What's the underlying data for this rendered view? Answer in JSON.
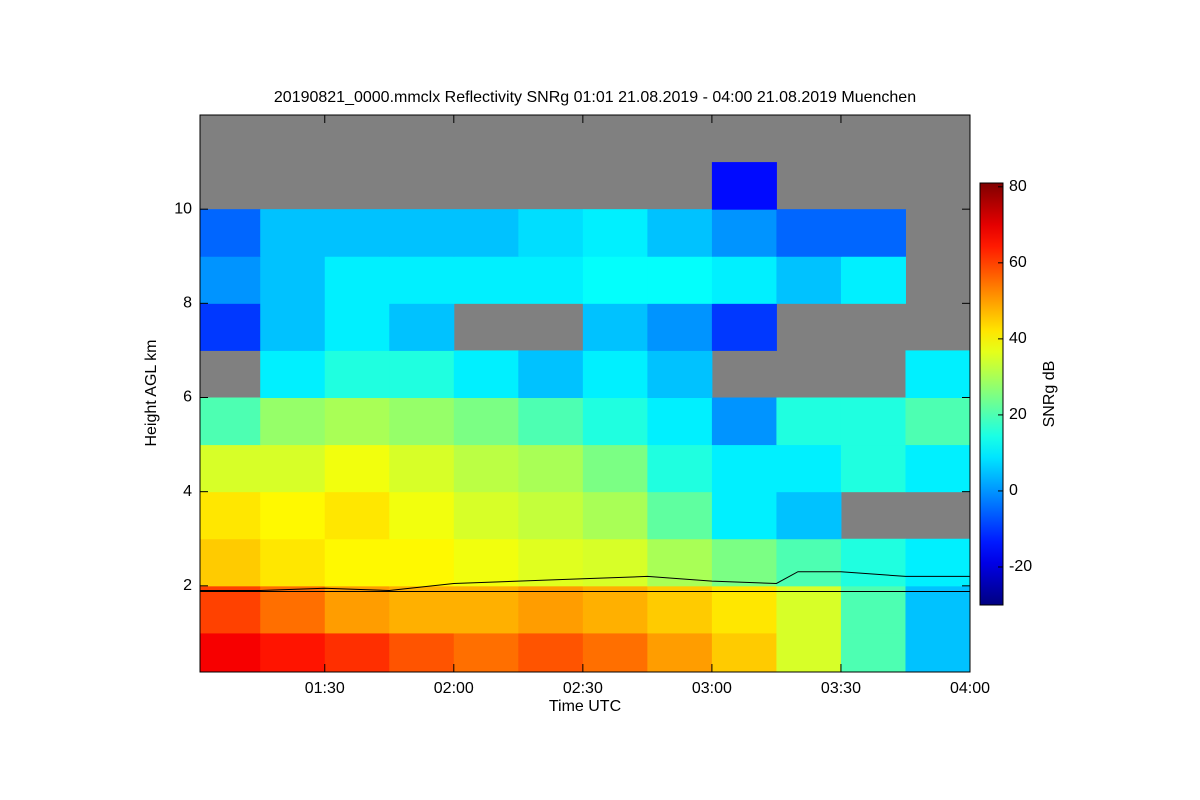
{
  "chart_data": {
    "type": "heatmap",
    "title": "20190821_0000.mmclx Reflectivity SNRg   01:01 21.08.2019 - 04:00 21.08.2019 Muenchen",
    "x_label": "Time UTC",
    "y_label": "Height AGL km",
    "colorbar_label": "SNRg dB",
    "xlim": [
      61,
      240
    ],
    "ylim": [
      0.17,
      12
    ],
    "zlim": [
      -30,
      81
    ],
    "xticks": [
      {
        "value": 90,
        "label": "01:30"
      },
      {
        "value": 120,
        "label": "02:00"
      },
      {
        "value": 150,
        "label": "02:30"
      },
      {
        "value": 180,
        "label": "03:00"
      },
      {
        "value": 210,
        "label": "03:30"
      },
      {
        "value": 240,
        "label": "04:00"
      }
    ],
    "yticks": [
      2,
      4,
      6,
      8,
      10
    ],
    "zticks": [
      -20,
      0,
      20,
      40,
      60,
      80
    ],
    "colormap": "jet",
    "no_data_color": "#808080",
    "x_edges": [
      61,
      75,
      90,
      105,
      120,
      135,
      150,
      165,
      180,
      195,
      210,
      225,
      240
    ],
    "y_edges": [
      0.17,
      1,
      2,
      3,
      4,
      5,
      6,
      7,
      8,
      9,
      10,
      11,
      12
    ],
    "z": [
      [
        68,
        65,
        62,
        58,
        55,
        58,
        55,
        50,
        45,
        35,
        20,
        5
      ],
      [
        60,
        55,
        50,
        48,
        48,
        50,
        48,
        45,
        42,
        35,
        20,
        5
      ],
      [
        45,
        42,
        40,
        40,
        38,
        36,
        35,
        30,
        25,
        20,
        15,
        10
      ],
      [
        42,
        40,
        42,
        38,
        35,
        33,
        30,
        22,
        10,
        5,
        null,
        null
      ],
      [
        35,
        35,
        38,
        35,
        32,
        30,
        25,
        15,
        10,
        10,
        15,
        10
      ],
      [
        20,
        28,
        30,
        28,
        25,
        20,
        15,
        10,
        0,
        15,
        15,
        20
      ],
      [
        null,
        10,
        15,
        15,
        10,
        5,
        10,
        5,
        null,
        null,
        null,
        10
      ],
      [
        -10,
        5,
        10,
        5,
        null,
        null,
        5,
        0,
        -10,
        null,
        null,
        null
      ],
      [
        0,
        5,
        10,
        10,
        10,
        10,
        12,
        12,
        10,
        5,
        10,
        null
      ],
      [
        -5,
        5,
        5,
        5,
        5,
        8,
        10,
        5,
        0,
        -5,
        -5,
        null
      ],
      [
        null,
        null,
        null,
        null,
        null,
        null,
        null,
        null,
        -15,
        null,
        null,
        null
      ],
      [
        null,
        null,
        null,
        null,
        null,
        null,
        null,
        null,
        null,
        null,
        null,
        null
      ]
    ],
    "lines": [
      {
        "color": "#000000",
        "x": [
          61,
          240
        ],
        "values": [
          1.88,
          1.88
        ]
      },
      {
        "color": "#000000",
        "x": [
          61,
          75,
          90,
          105,
          120,
          135,
          150,
          165,
          180,
          195,
          200,
          210,
          225,
          240
        ],
        "values": [
          1.9,
          1.9,
          1.95,
          1.9,
          2.05,
          2.1,
          2.15,
          2.2,
          2.1,
          2.05,
          2.3,
          2.3,
          2.2,
          2.2
        ]
      }
    ]
  }
}
